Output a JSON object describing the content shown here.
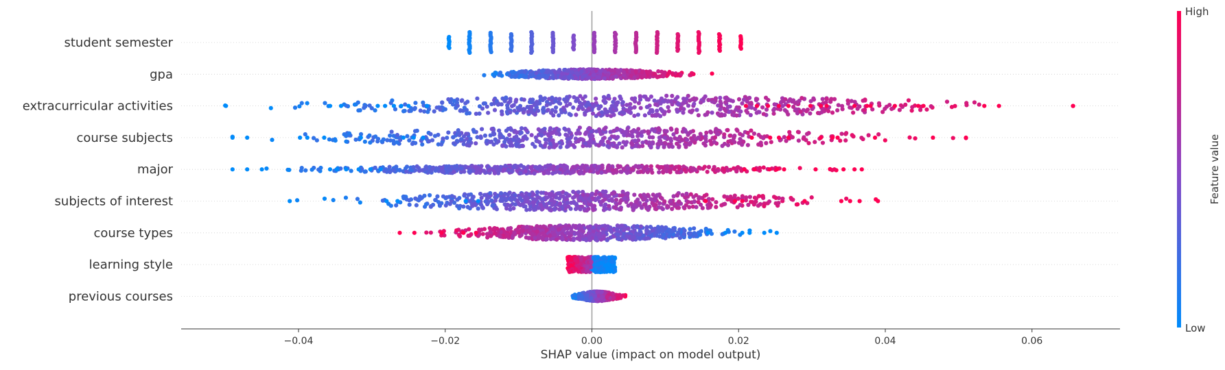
{
  "chart_data": {
    "type": "scatter",
    "subtype": "shap-beeswarm",
    "xlabel": "SHAP value (impact on model output)",
    "xlim": [
      -0.056,
      0.072
    ],
    "x_ticks": [
      -0.04,
      -0.02,
      0.0,
      0.02,
      0.04,
      0.06
    ],
    "x_tick_labels": [
      "−0.04",
      "−0.02",
      "0.00",
      "0.02",
      "0.04",
      "0.06"
    ],
    "grid": false,
    "colorbar": {
      "label": "Feature value",
      "high_label": "High",
      "low_label": "Low",
      "low_color": "#008bfb",
      "high_color": "#ff0052",
      "mid_color": "#8c46c4"
    },
    "features": [
      {
        "name": "student semester",
        "min": -0.0195,
        "max": 0.0203,
        "density_width": 0.0,
        "clusters": [
          {
            "x": -0.0195,
            "c": 0.0,
            "h": 0.4
          },
          {
            "x": -0.0167,
            "c": 0.05,
            "h": 0.75
          },
          {
            "x": -0.0138,
            "c": 0.12,
            "h": 0.7
          },
          {
            "x": -0.011,
            "c": 0.2,
            "h": 0.6
          },
          {
            "x": -0.0082,
            "c": 0.3,
            "h": 0.75
          },
          {
            "x": -0.0053,
            "c": 0.38,
            "h": 0.7
          },
          {
            "x": -0.0025,
            "c": 0.45,
            "h": 0.5
          },
          {
            "x": 0.0003,
            "c": 0.55,
            "h": 0.7
          },
          {
            "x": 0.0032,
            "c": 0.62,
            "h": 0.7
          },
          {
            "x": 0.006,
            "c": 0.7,
            "h": 0.7
          },
          {
            "x": 0.0089,
            "c": 0.78,
            "h": 0.75
          },
          {
            "x": 0.0117,
            "c": 0.86,
            "h": 0.6
          },
          {
            "x": 0.0146,
            "c": 0.92,
            "h": 0.75
          },
          {
            "x": 0.0174,
            "c": 0.97,
            "h": 0.6
          },
          {
            "x": 0.0203,
            "c": 1.0,
            "h": 0.45
          }
        ]
      },
      {
        "name": "gpa",
        "min": -0.0172,
        "max": 0.0164,
        "density_width": 0.35,
        "outliers": []
      },
      {
        "name": "extracurricular activities",
        "min": -0.05,
        "max": 0.0656,
        "density_width": 0.75,
        "outliers": [
          {
            "x": -0.0499,
            "c": 0.0
          },
          {
            "x": -0.0357,
            "c": 0.0
          },
          {
            "x": -0.0342,
            "c": 0.0
          },
          {
            "x": -0.0292,
            "c": 0.0
          },
          {
            "x": -0.0282,
            "c": 0.0
          },
          {
            "x": -0.027,
            "c": 0.0
          },
          {
            "x": -0.026,
            "c": 0.0
          },
          {
            "x": -0.025,
            "c": 0.0
          },
          {
            "x": -0.0225,
            "c": 0.0
          },
          {
            "x": 0.021,
            "c": 1.0
          },
          {
            "x": 0.0225,
            "c": 1.0
          },
          {
            "x": 0.024,
            "c": 1.0
          },
          {
            "x": 0.0255,
            "c": 1.0
          },
          {
            "x": 0.0268,
            "c": 1.0
          },
          {
            "x": 0.0298,
            "c": 1.0
          },
          {
            "x": 0.0312,
            "c": 1.0
          },
          {
            "x": 0.032,
            "c": 1.0
          },
          {
            "x": 0.0358,
            "c": 1.0
          },
          {
            "x": 0.0375,
            "c": 1.0
          },
          {
            "x": 0.038,
            "c": 1.0
          },
          {
            "x": 0.0413,
            "c": 1.0
          },
          {
            "x": 0.0445,
            "c": 1.0
          },
          {
            "x": 0.0452,
            "c": 1.0
          },
          {
            "x": 0.0535,
            "c": 1.0
          },
          {
            "x": 0.0555,
            "c": 1.0
          },
          {
            "x": 0.0656,
            "c": 1.0
          }
        ]
      },
      {
        "name": "course subjects",
        "min": -0.049,
        "max": 0.051,
        "density_width": 0.75,
        "outliers": [
          {
            "x": -0.049,
            "c": 0.0
          },
          {
            "x": -0.047,
            "c": 0.0
          },
          {
            "x": -0.0398,
            "c": 0.0
          },
          {
            "x": -0.0388,
            "c": 0.0
          },
          {
            "x": -0.0365,
            "c": 0.0
          },
          {
            "x": -0.0315,
            "c": 0.0
          },
          {
            "x": -0.0257,
            "c": 0.0
          },
          {
            "x": -0.0243,
            "c": 0.0
          },
          {
            "x": -0.023,
            "c": 0.0
          },
          {
            "x": 0.0218,
            "c": 1.0
          },
          {
            "x": 0.0243,
            "c": 1.0
          },
          {
            "x": 0.0255,
            "c": 1.0
          },
          {
            "x": 0.0268,
            "c": 1.0
          },
          {
            "x": 0.0312,
            "c": 1.0
          },
          {
            "x": 0.0328,
            "c": 1.0
          },
          {
            "x": 0.0335,
            "c": 1.0
          },
          {
            "x": 0.0386,
            "c": 1.0
          },
          {
            "x": 0.0465,
            "c": 1.0
          },
          {
            "x": 0.051,
            "c": 1.0
          }
        ]
      },
      {
        "name": "major",
        "min": -0.049,
        "max": 0.0368,
        "density_width": 0.3,
        "outliers": [
          {
            "x": -0.049,
            "c": 0.0
          },
          {
            "x": -0.047,
            "c": 0.0
          },
          {
            "x": -0.045,
            "c": 0.0
          },
          {
            "x": -0.0357,
            "c": 0.0
          },
          {
            "x": -0.0348,
            "c": 0.0
          },
          {
            "x": -0.0335,
            "c": 0.0
          },
          {
            "x": -0.0318,
            "c": 0.0
          },
          {
            "x": -0.0302,
            "c": 0.0
          },
          {
            "x": -0.0288,
            "c": 0.0
          },
          {
            "x": 0.0208,
            "c": 1.0
          },
          {
            "x": 0.0222,
            "c": 1.0
          },
          {
            "x": 0.0242,
            "c": 1.0
          },
          {
            "x": 0.0252,
            "c": 1.0
          },
          {
            "x": 0.0262,
            "c": 1.0
          },
          {
            "x": 0.0305,
            "c": 1.0
          },
          {
            "x": 0.0343,
            "c": 1.0
          },
          {
            "x": 0.0358,
            "c": 1.0
          },
          {
            "x": 0.0368,
            "c": 1.0
          }
        ]
      },
      {
        "name": "subjects of interest",
        "min": -0.0412,
        "max": 0.039,
        "density_width": 0.7,
        "outliers": [
          {
            "x": -0.0412,
            "c": 0.0
          },
          {
            "x": -0.028,
            "c": 0.0
          },
          {
            "x": -0.0265,
            "c": 0.0
          },
          {
            "x": -0.0172,
            "c": 0.0
          },
          {
            "x": -0.0155,
            "c": 0.0
          },
          {
            "x": 0.0155,
            "c": 1.0
          },
          {
            "x": 0.0195,
            "c": 1.0
          },
          {
            "x": 0.0205,
            "c": 1.0
          },
          {
            "x": 0.029,
            "c": 1.0
          },
          {
            "x": 0.034,
            "c": 1.0
          },
          {
            "x": 0.0352,
            "c": 1.0
          },
          {
            "x": 0.0365,
            "c": 1.0
          },
          {
            "x": 0.039,
            "c": 1.0
          }
        ]
      },
      {
        "name": "course types",
        "min": -0.0262,
        "max": 0.0252,
        "density_width": 0.55,
        "outliers": [
          {
            "x": -0.0262,
            "c": 1.0
          },
          {
            "x": -0.0242,
            "c": 1.0
          },
          {
            "x": -0.0205,
            "c": 1.0
          },
          {
            "x": -0.0175,
            "c": 1.0
          },
          {
            "x": -0.0158,
            "c": 1.0
          },
          {
            "x": 0.0158,
            "c": 0.0
          },
          {
            "x": 0.0182,
            "c": 0.0
          },
          {
            "x": 0.0205,
            "c": 0.0
          },
          {
            "x": 0.0215,
            "c": 0.0
          },
          {
            "x": 0.0235,
            "c": 0.0
          },
          {
            "x": 0.0252,
            "c": 0.0
          }
        ]
      },
      {
        "name": "learning style",
        "min": -0.0033,
        "max": 0.0032,
        "density_width": 0.65,
        "outliers": []
      },
      {
        "name": "previous courses",
        "min": -0.0033,
        "max": 0.0048,
        "density_width": 0.35,
        "outliers": []
      }
    ]
  }
}
